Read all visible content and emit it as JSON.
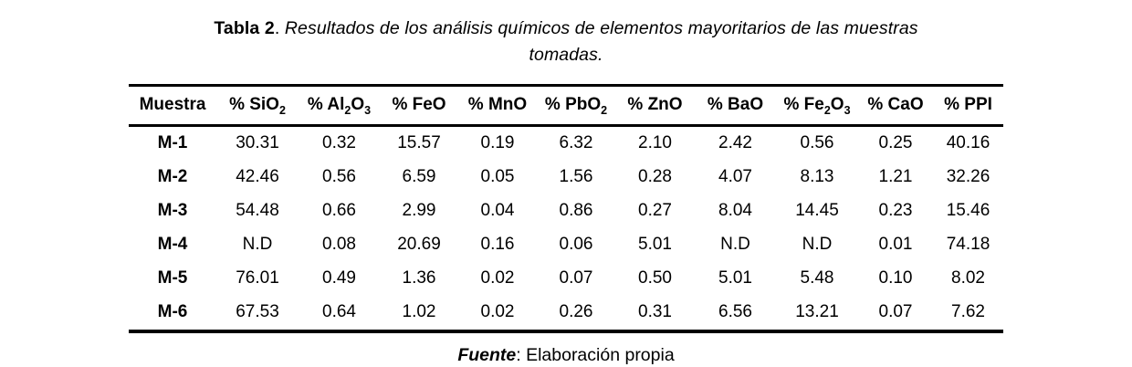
{
  "title": {
    "label": "Tabla 2",
    "separator": ". ",
    "text": "Resultados de los análisis químicos de elementos mayoritarios de las muestras tomadas."
  },
  "table": {
    "columns": [
      [
        {
          "t": "Muestra"
        }
      ],
      [
        {
          "t": "% SiO"
        },
        {
          "t": "2",
          "sub": true
        }
      ],
      [
        {
          "t": "% Al"
        },
        {
          "t": "2",
          "sub": true
        },
        {
          "t": "O"
        },
        {
          "t": "3",
          "sub": true
        }
      ],
      [
        {
          "t": "% FeO"
        }
      ],
      [
        {
          "t": "% MnO"
        }
      ],
      [
        {
          "t": "% PbO"
        },
        {
          "t": "2",
          "sub": true
        }
      ],
      [
        {
          "t": "% ZnO"
        }
      ],
      [
        {
          "t": "% BaO"
        }
      ],
      [
        {
          "t": "% Fe"
        },
        {
          "t": "2",
          "sub": true
        },
        {
          "t": "O"
        },
        {
          "t": "3",
          "sub": true
        }
      ],
      [
        {
          "t": "% CaO"
        }
      ],
      [
        {
          "t": "% PPI"
        }
      ]
    ],
    "rows": [
      {
        "muestra": "M-1",
        "values": [
          "30.31",
          "0.32",
          "15.57",
          "0.19",
          "6.32",
          "2.10",
          "2.42",
          "0.56",
          "0.25",
          "40.16"
        ]
      },
      {
        "muestra": "M-2",
        "values": [
          "42.46",
          "0.56",
          "6.59",
          "0.05",
          "1.56",
          "0.28",
          "4.07",
          "8.13",
          "1.21",
          "32.26"
        ]
      },
      {
        "muestra": "M-3",
        "values": [
          "54.48",
          "0.66",
          "2.99",
          "0.04",
          "0.86",
          "0.27",
          "8.04",
          "14.45",
          "0.23",
          "15.46"
        ]
      },
      {
        "muestra": "M-4",
        "values": [
          "N.D",
          "0.08",
          "20.69",
          "0.16",
          "0.06",
          "5.01",
          "N.D",
          "N.D",
          "0.01",
          "74.18"
        ]
      },
      {
        "muestra": "M-5",
        "values": [
          "76.01",
          "0.49",
          "1.36",
          "0.02",
          "0.07",
          "0.50",
          "5.01",
          "5.48",
          "0.10",
          "8.02"
        ]
      },
      {
        "muestra": "M-6",
        "values": [
          "67.53",
          "0.64",
          "1.02",
          "0.02",
          "0.26",
          "0.31",
          "6.56",
          "13.21",
          "0.07",
          "7.62"
        ]
      }
    ]
  },
  "footer": {
    "label": "Fuente",
    "text": ": Elaboración propia"
  },
  "colors": {
    "text": "#000000",
    "border": "#000000",
    "background": "#ffffff"
  }
}
